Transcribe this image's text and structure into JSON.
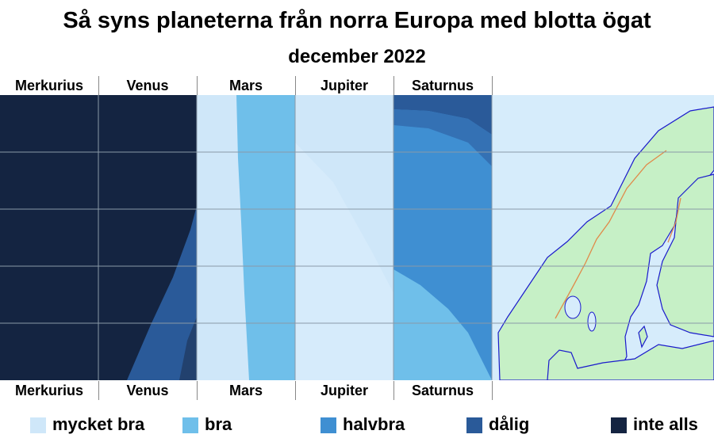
{
  "title": "Så syns planeterna från norra Europa med blotta ögat",
  "subtitle": "december 2022",
  "chart_data": {
    "type": "heatmap",
    "title": "Så syns planeterna från norra Europa med blotta ögat",
    "subtitle": "december 2022",
    "columns": [
      "Merkurius",
      "Venus",
      "Mars",
      "Jupiter",
      "Saturnus"
    ],
    "rows_direction": "north-to-south (aligned with map)",
    "categories": [
      "mycket bra",
      "bra",
      "halvbra",
      "dålig",
      "inte alls"
    ],
    "colors": [
      "#cfe7f9",
      "#6fbfea",
      "#3f8fd2",
      "#2a5a99",
      "#142441"
    ],
    "visibility": {
      "Merkurius": "inte alls",
      "Venus": "inte alls i norr, dålig i söder",
      "Mars": "mycket bra / bra",
      "Jupiter": "mycket bra",
      "Saturnus": "dålig i norr, halvbra / bra i söder"
    },
    "grid": true
  },
  "legend": [
    {
      "label": "mycket bra",
      "color": "#cfe7f9"
    },
    {
      "label": "bra",
      "color": "#6fbfea"
    },
    {
      "label": "halvbra",
      "color": "#3f8fd2"
    },
    {
      "label": "dålig",
      "color": "#2a5a99"
    },
    {
      "label": "inte alls",
      "color": "#142441"
    }
  ],
  "map": {
    "sea_color": "#d6ecfb",
    "land_color": "#c6f0c6",
    "coast_color": "#1a1acc",
    "border_color": "#e08a4a"
  }
}
